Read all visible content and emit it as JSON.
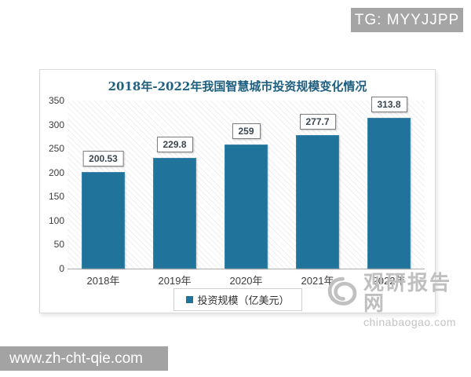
{
  "overlays": {
    "tg_badge": "TG: MYYJJPP",
    "site_banner": "www.zh-cht-qie.com"
  },
  "watermark": {
    "name": "观研报告网",
    "domain": "chinabaogao.com"
  },
  "chart_data": {
    "type": "bar",
    "title": "2018年-2022年我国智慧城市投资规模变化情况",
    "categories": [
      "2018年",
      "2019年",
      "2020年",
      "2021年",
      "2022年"
    ],
    "values": [
      200.53,
      229.8,
      259,
      277.7,
      313.8
    ],
    "value_labels": [
      "200.53",
      "229.8",
      "259",
      "277.7",
      "313.8"
    ],
    "legend": "投资规模（亿美元）",
    "legend_position": "bottom",
    "xlabel": "",
    "ylabel": "",
    "ylim": [
      0,
      350
    ],
    "yticks": [
      0,
      50,
      100,
      150,
      200,
      250,
      300,
      350
    ],
    "grid": false,
    "plot_background": "hatched-diagonal",
    "bar_color": "#20739a",
    "title_color": "#1e5f7f"
  }
}
